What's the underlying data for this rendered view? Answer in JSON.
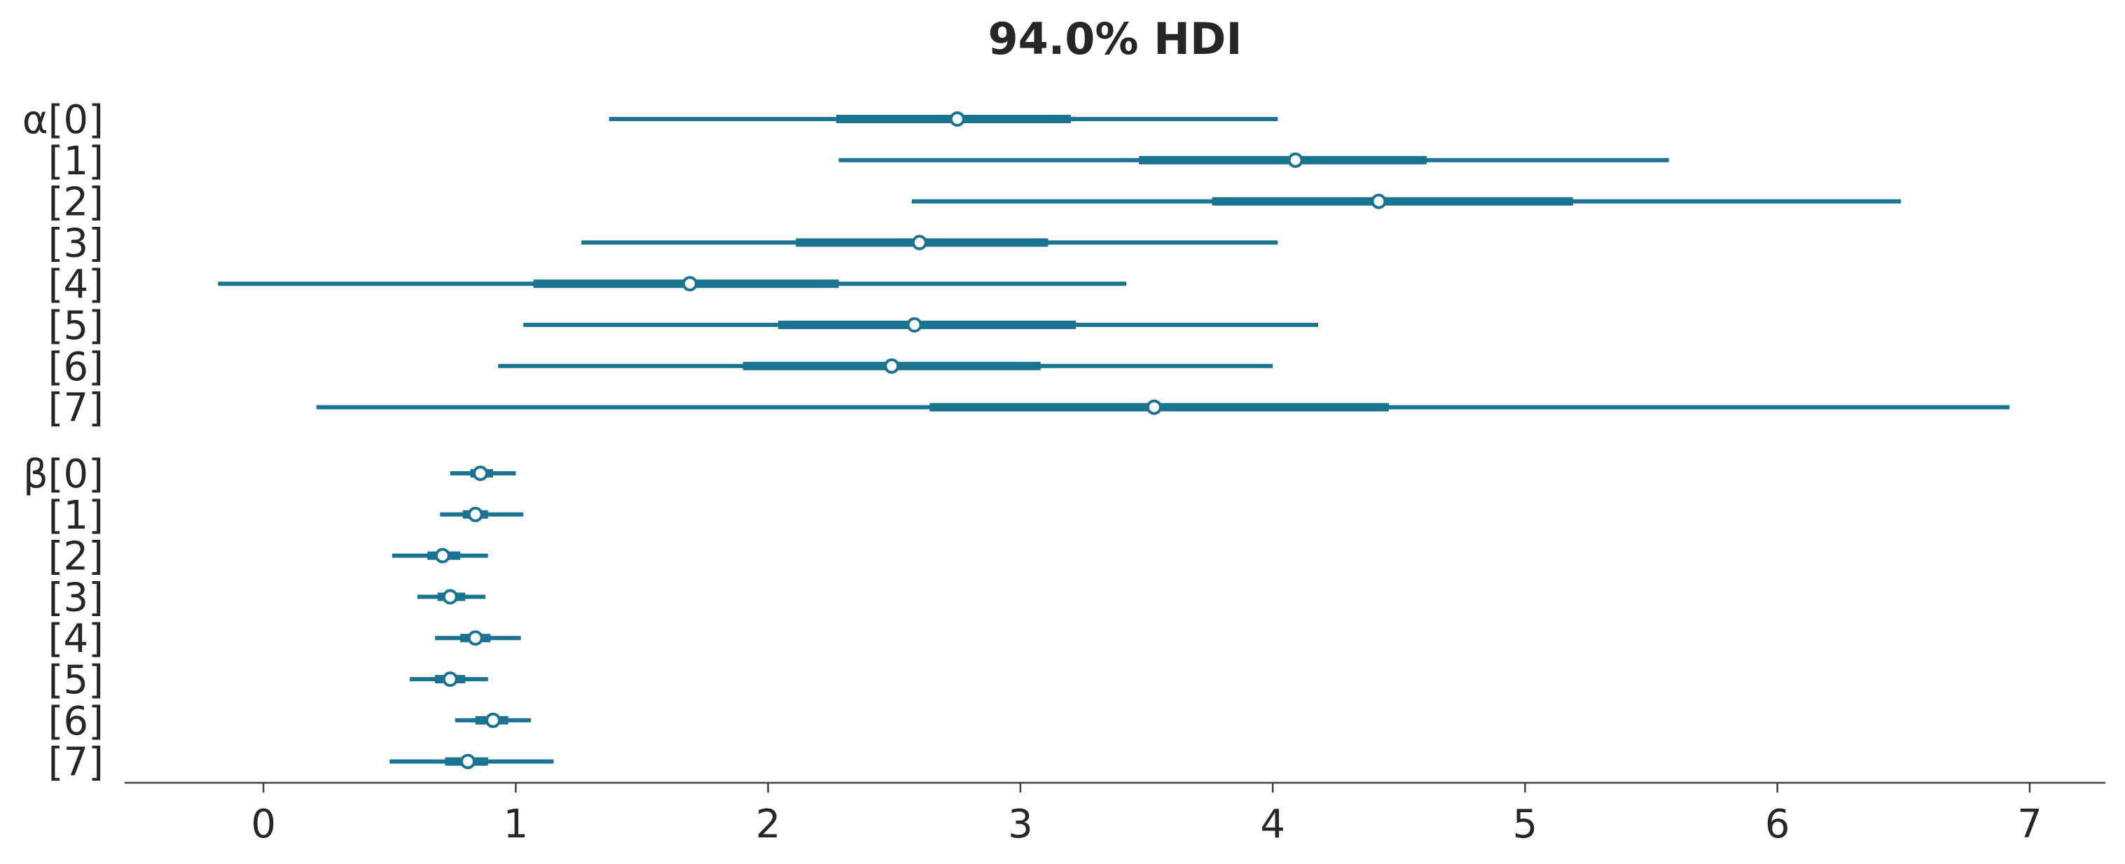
{
  "chart_data": {
    "type": "forest",
    "title": "94.0% HDI",
    "color": "#1a7391",
    "marker_fill": "#ffffff",
    "axis_color": "#404040",
    "text_color": "#262626",
    "xlim": [
      -0.55,
      7.3
    ],
    "xticks": [
      0,
      1,
      2,
      3,
      4,
      5,
      6,
      7
    ],
    "grid": false,
    "groups": [
      {
        "name": "α",
        "rows": [
          {
            "label": "α[0]",
            "hdi94": [
              1.37,
              4.02
            ],
            "iqr": [
              2.27,
              3.2
            ],
            "median": 2.75
          },
          {
            "label": "[1]",
            "hdi94": [
              2.28,
              5.57
            ],
            "iqr": [
              3.47,
              4.61
            ],
            "median": 4.09
          },
          {
            "label": "[2]",
            "hdi94": [
              2.57,
              6.49
            ],
            "iqr": [
              3.76,
              5.19
            ],
            "median": 4.42
          },
          {
            "label": "[3]",
            "hdi94": [
              1.26,
              4.02
            ],
            "iqr": [
              2.11,
              3.11
            ],
            "median": 2.6
          },
          {
            "label": "[4]",
            "hdi94": [
              -0.18,
              3.42
            ],
            "iqr": [
              1.07,
              2.28
            ],
            "median": 1.69
          },
          {
            "label": "[5]",
            "hdi94": [
              1.03,
              4.18
            ],
            "iqr": [
              2.04,
              3.22
            ],
            "median": 2.58
          },
          {
            "label": "[6]",
            "hdi94": [
              0.93,
              4.0
            ],
            "iqr": [
              1.9,
              3.08
            ],
            "median": 2.49
          },
          {
            "label": "[7]",
            "hdi94": [
              0.21,
              6.92
            ],
            "iqr": [
              2.64,
              4.46
            ],
            "median": 3.53
          }
        ]
      },
      {
        "name": "β",
        "rows": [
          {
            "label": "β[0]",
            "hdi94": [
              0.74,
              1.0
            ],
            "iqr": [
              0.82,
              0.91
            ],
            "median": 0.86
          },
          {
            "label": "[1]",
            "hdi94": [
              0.7,
              1.03
            ],
            "iqr": [
              0.79,
              0.89
            ],
            "median": 0.84
          },
          {
            "label": "[2]",
            "hdi94": [
              0.51,
              0.89
            ],
            "iqr": [
              0.65,
              0.78
            ],
            "median": 0.71
          },
          {
            "label": "[3]",
            "hdi94": [
              0.61,
              0.88
            ],
            "iqr": [
              0.69,
              0.8
            ],
            "median": 0.74
          },
          {
            "label": "[4]",
            "hdi94": [
              0.68,
              1.02
            ],
            "iqr": [
              0.78,
              0.9
            ],
            "median": 0.84
          },
          {
            "label": "[5]",
            "hdi94": [
              0.58,
              0.89
            ],
            "iqr": [
              0.68,
              0.8
            ],
            "median": 0.74
          },
          {
            "label": "[6]",
            "hdi94": [
              0.76,
              1.06
            ],
            "iqr": [
              0.84,
              0.97
            ],
            "median": 0.91
          },
          {
            "label": "[7]",
            "hdi94": [
              0.5,
              1.15
            ],
            "iqr": [
              0.72,
              0.89
            ],
            "median": 0.81
          }
        ]
      }
    ]
  }
}
